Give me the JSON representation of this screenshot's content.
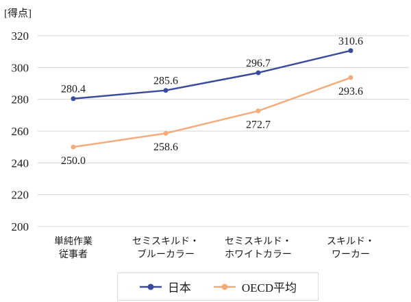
{
  "unit_label": "[得点]",
  "colors": {
    "japan": "#3A4B9D",
    "oecd_average": "#F3AC7E",
    "gridline": "#D4D4D4",
    "text": "#1A1A1A",
    "legend_border": "#DCDCDC",
    "background": "#FFFFFF"
  },
  "chart_data": {
    "type": "line",
    "title": "",
    "unit": "[得点]",
    "categories": [
      [
        "単純作業",
        "従事者"
      ],
      [
        "セミスキルド・",
        "ブルーカラー"
      ],
      [
        "セミスキルド・",
        "ホワイトカラー"
      ],
      [
        "スキルド・",
        "ワーカー"
      ]
    ],
    "series": [
      {
        "id": "japan",
        "name": "日本",
        "color": "#3A4B9D",
        "values": [
          280.4,
          285.6,
          296.7,
          310.6
        ],
        "label_position": "above"
      },
      {
        "id": "oecd-average",
        "name": "OECD平均",
        "color": "#F3AC7E",
        "values": [
          250.0,
          258.6,
          272.7,
          293.6
        ],
        "label_position": "below"
      }
    ],
    "ylim": [
      200,
      320
    ],
    "yticks": [
      200,
      220,
      240,
      260,
      280,
      300,
      320
    ],
    "grid": "horizontal",
    "legend_position": "bottom",
    "value_label_decimals": 1
  }
}
